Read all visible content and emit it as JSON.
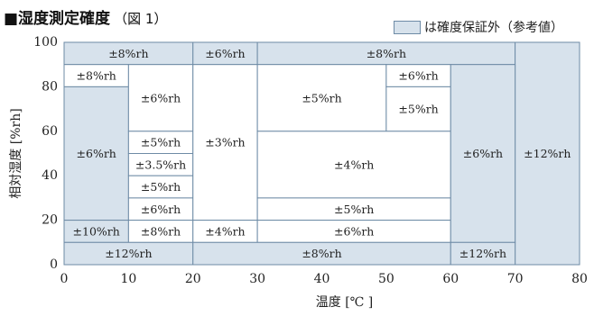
{
  "title": {
    "main": "■湿度測定確度",
    "sub": "（図 1）"
  },
  "legend": {
    "label": "は確度保証外（参考値）",
    "swatch_color": "#d7e2ec"
  },
  "chart_data": {
    "type": "table",
    "xlabel": "温度 [℃ ]",
    "ylabel": "相対湿度 [%rh]",
    "xlim": [
      0,
      80
    ],
    "ylim": [
      0,
      100
    ],
    "x_ticks": [
      "0",
      "10",
      "20",
      "30",
      "40",
      "50",
      "60",
      "70",
      "80"
    ],
    "y_ticks": [
      "0",
      "20",
      "40",
      "60",
      "80",
      "100"
    ],
    "colors": {
      "shaded": "#d7e2ec",
      "white": "#ffffff",
      "border": "#6e8ba6"
    },
    "cells": [
      {
        "x0": 0,
        "x1": 20,
        "y0": 90,
        "y1": 100,
        "label": "±8%rh",
        "shaded": true
      },
      {
        "x0": 20,
        "x1": 30,
        "y0": 90,
        "y1": 100,
        "label": "±6%rh",
        "shaded": true
      },
      {
        "x0": 30,
        "x1": 70,
        "y0": 90,
        "y1": 100,
        "label": "±8%rh",
        "shaded": true
      },
      {
        "x0": 70,
        "x1": 80,
        "y0": 0,
        "y1": 100,
        "label": "±12%rh",
        "shaded": true
      },
      {
        "x0": 0,
        "x1": 10,
        "y0": 80,
        "y1": 90,
        "label": "±8%rh",
        "shaded": false
      },
      {
        "x0": 0,
        "x1": 10,
        "y0": 20,
        "y1": 80,
        "label": "±6%rh",
        "shaded": true
      },
      {
        "x0": 0,
        "x1": 10,
        "y0": 10,
        "y1": 20,
        "label": "±10%rh",
        "shaded": true
      },
      {
        "x0": 10,
        "x1": 20,
        "y0": 60,
        "y1": 90,
        "label": "±6%rh",
        "shaded": false
      },
      {
        "x0": 10,
        "x1": 20,
        "y0": 50,
        "y1": 60,
        "label": "±5%rh",
        "shaded": false
      },
      {
        "x0": 10,
        "x1": 20,
        "y0": 40,
        "y1": 50,
        "label": "±3.5%rh",
        "shaded": false
      },
      {
        "x0": 10,
        "x1": 20,
        "y0": 30,
        "y1": 40,
        "label": "±5%rh",
        "shaded": false
      },
      {
        "x0": 10,
        "x1": 20,
        "y0": 20,
        "y1": 30,
        "label": "±6%rh",
        "shaded": false
      },
      {
        "x0": 10,
        "x1": 20,
        "y0": 10,
        "y1": 20,
        "label": "±8%rh",
        "shaded": false
      },
      {
        "x0": 20,
        "x1": 30,
        "y0": 20,
        "y1": 90,
        "label": "±3%rh",
        "shaded": false
      },
      {
        "x0": 20,
        "x1": 30,
        "y0": 10,
        "y1": 20,
        "label": "±4%rh",
        "shaded": false
      },
      {
        "x0": 30,
        "x1": 50,
        "y0": 60,
        "y1": 90,
        "label": "±5%rh",
        "shaded": false
      },
      {
        "x0": 50,
        "x1": 60,
        "y0": 80,
        "y1": 90,
        "label": "±6%rh",
        "shaded": false
      },
      {
        "x0": 50,
        "x1": 60,
        "y0": 60,
        "y1": 80,
        "label": "±5%rh",
        "shaded": false
      },
      {
        "x0": 30,
        "x1": 60,
        "y0": 30,
        "y1": 60,
        "label": "±4%rh",
        "shaded": false
      },
      {
        "x0": 30,
        "x1": 60,
        "y0": 20,
        "y1": 30,
        "label": "±5%rh",
        "shaded": false
      },
      {
        "x0": 30,
        "x1": 60,
        "y0": 10,
        "y1": 20,
        "label": "±6%rh",
        "shaded": false
      },
      {
        "x0": 60,
        "x1": 70,
        "y0": 10,
        "y1": 90,
        "label": "±6%rh",
        "shaded": true
      },
      {
        "x0": 0,
        "x1": 20,
        "y0": 0,
        "y1": 10,
        "label": "±12%rh",
        "shaded": true
      },
      {
        "x0": 20,
        "x1": 60,
        "y0": 0,
        "y1": 10,
        "label": "±8%rh",
        "shaded": true
      },
      {
        "x0": 60,
        "x1": 70,
        "y0": 0,
        "y1": 10,
        "label": "±12%rh",
        "shaded": true
      }
    ]
  }
}
